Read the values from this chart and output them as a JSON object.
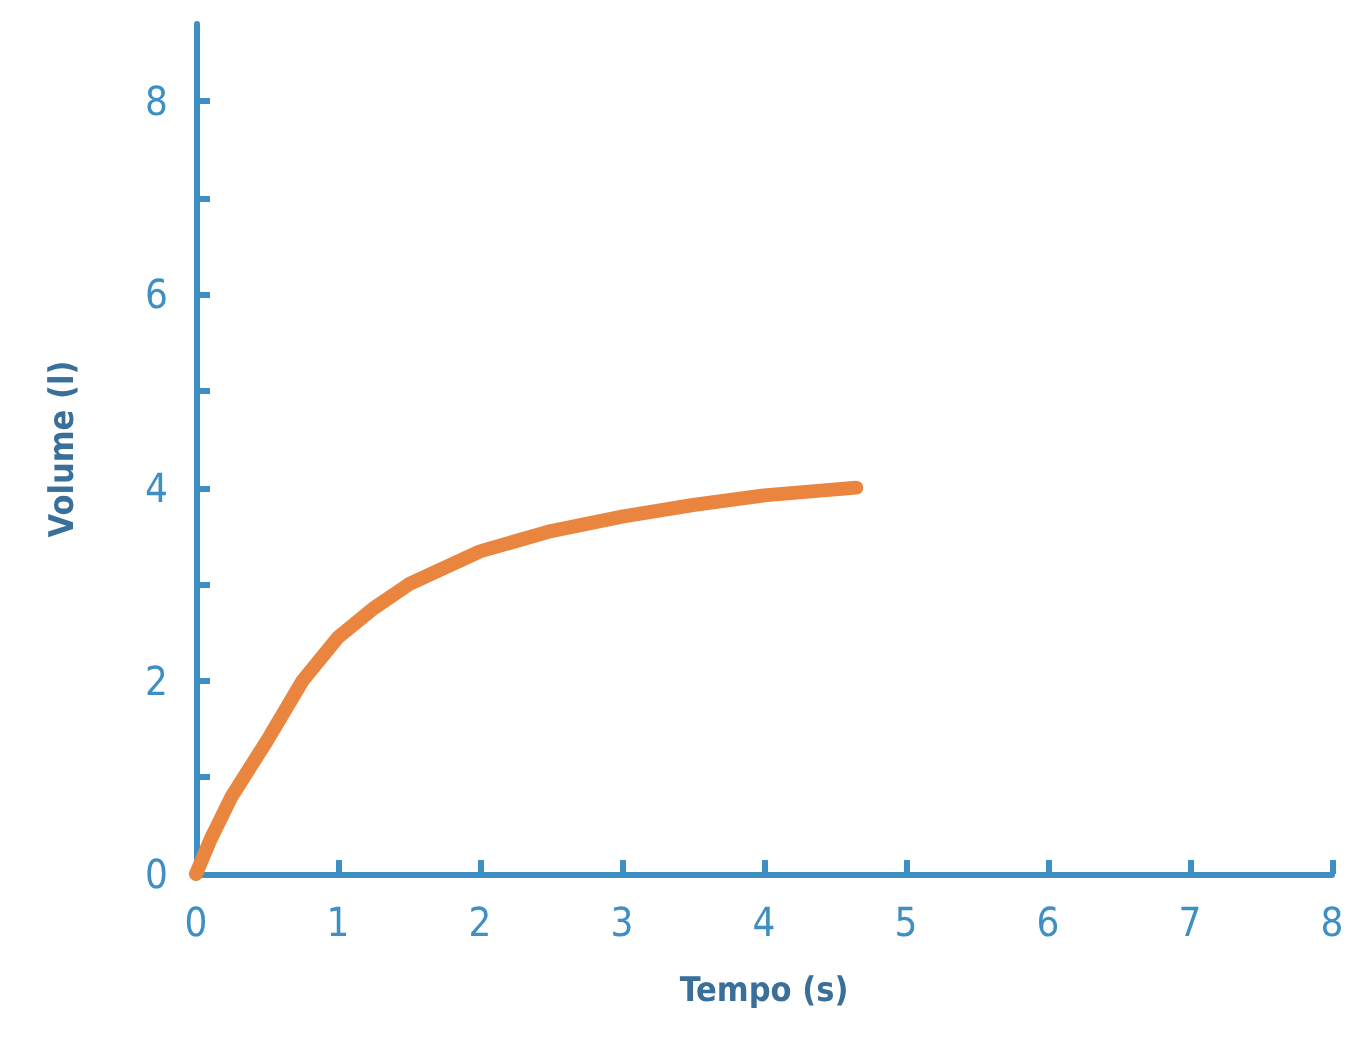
{
  "chart_data": {
    "type": "line",
    "xlabel": "Tempo (s)",
    "ylabel": "Volume (l)",
    "x": [
      0,
      0.1,
      0.25,
      0.5,
      0.75,
      1,
      1.25,
      1.5,
      2,
      2.5,
      3,
      3.5,
      4,
      4.65
    ],
    "series": [
      {
        "color": "#ea8540",
        "values": [
          0,
          0.35,
          0.8,
          1.38,
          2.0,
          2.45,
          2.75,
          3.0,
          3.34,
          3.55,
          3.7,
          3.82,
          3.92,
          4.0
        ]
      }
    ],
    "xlim": [
      0,
      8
    ],
    "xticks": [
      0,
      1,
      2,
      3,
      4,
      5,
      6,
      7,
      8
    ],
    "ylim": [
      0,
      8.8
    ],
    "yticks": [
      0,
      {
        "value": 1,
        "label": null
      },
      2,
      {
        "value": 3,
        "label": null
      },
      4,
      {
        "value": 5,
        "label": null
      },
      6,
      {
        "value": 7,
        "label": null
      },
      8
    ],
    "grid": false,
    "line_style": "solid"
  }
}
